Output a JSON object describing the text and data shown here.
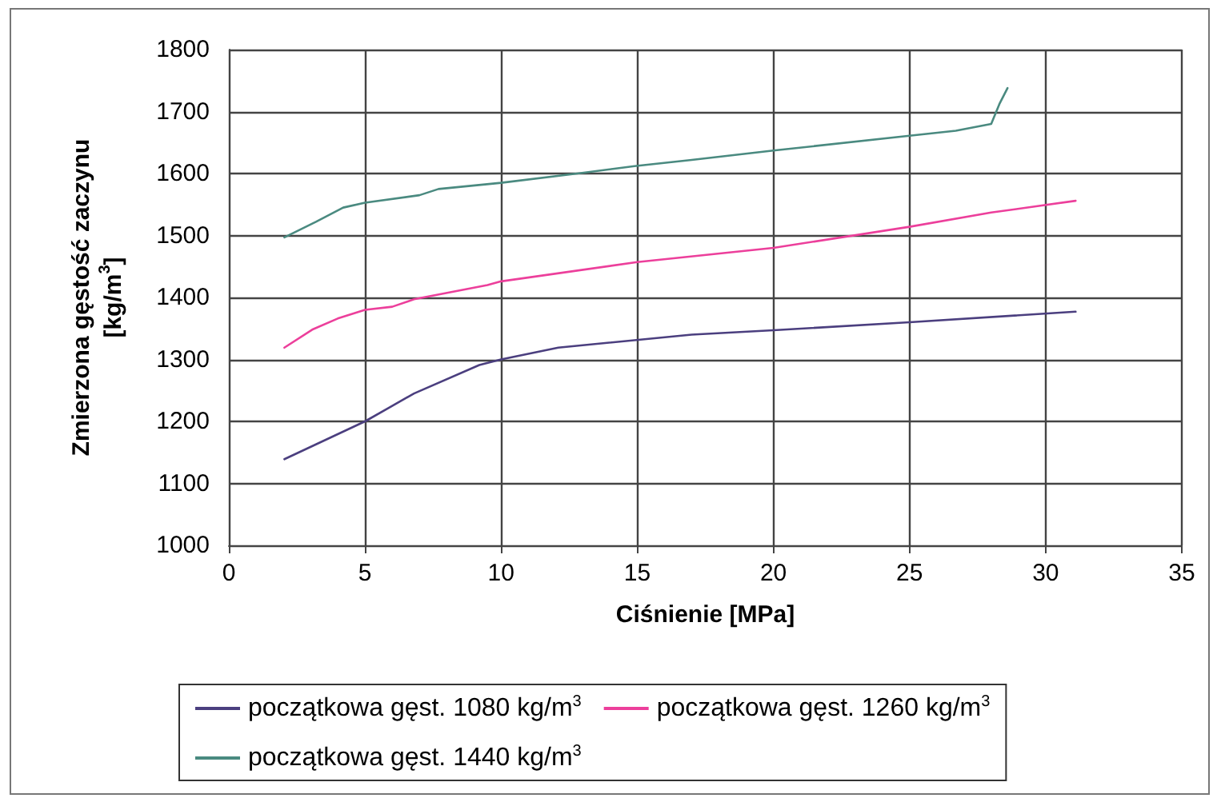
{
  "chart_data": {
    "type": "line",
    "xlabel": "Ciśnienie [MPa]",
    "ylabel": "Zmierzona gęstość zaczynu [kg/m$^{3}$]",
    "xlim": [
      0,
      35
    ],
    "xticks": [
      0,
      5,
      10,
      15,
      20,
      25,
      30,
      35
    ],
    "ylim": [
      1000,
      1800
    ],
    "yticks": [
      1000,
      1100,
      1200,
      1300,
      1400,
      1500,
      1600,
      1700,
      1800
    ],
    "grid": true,
    "legend": "bottom",
    "marker": "none",
    "line_style": "solid",
    "series": [
      {
        "name": "początkowa gęst. 1080 kg/m$^{3}$",
        "color": "#4b3f7f",
        "x": [
          2.04,
          5,
          6.8,
          9.2,
          10,
          12.1,
          17,
          20,
          25,
          31.1
        ],
        "values": [
          1139,
          1200,
          1245,
          1291,
          1300,
          1319,
          1340,
          1347,
          1360,
          1377
        ]
      },
      {
        "name": "początkowa gęst. 1260 kg/m$^{3}$",
        "color": "#ec3f9b",
        "x": [
          2.04,
          3.06,
          4,
          5,
          6,
          6.8,
          9.5,
          10,
          15,
          20,
          25,
          28,
          31.1
        ],
        "values": [
          1319,
          1348,
          1366,
          1380,
          1385,
          1397,
          1420,
          1426,
          1457,
          1480,
          1514,
          1537,
          1556
        ]
      },
      {
        "name": "początkowa gęst. 1440 kg/m$^{3}$",
        "color": "#4a8a80",
        "x": [
          2.04,
          3.2,
          4.2,
          5,
          7,
          7.7,
          10,
          12.8,
          14.9,
          17,
          20,
          25,
          26.7,
          28,
          28.3,
          28.6
        ],
        "values": [
          1497,
          1522,
          1545,
          1553,
          1565,
          1575,
          1585,
          1600,
          1612,
          1622,
          1637,
          1661,
          1669,
          1680,
          1712,
          1738
        ]
      }
    ]
  }
}
